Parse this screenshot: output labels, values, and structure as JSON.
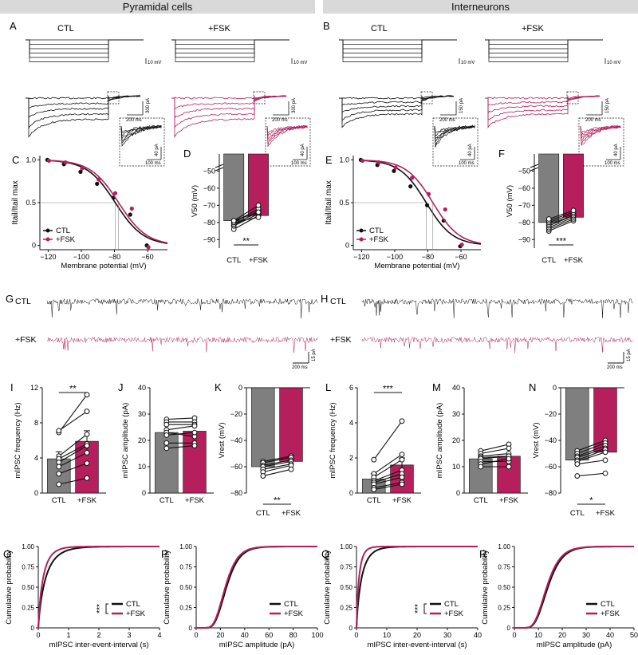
{
  "headers": [
    "Pyramidal cells",
    "Interneurons"
  ],
  "colors": {
    "ctl": "#111111",
    "fsk": "#b51f5c",
    "ctl_bar": "#7f7f7f",
    "grey_bg": "#d9d9d9"
  },
  "panel_letters": [
    "A",
    "B",
    "C",
    "D",
    "E",
    "F",
    "G",
    "H",
    "I",
    "J",
    "K",
    "L",
    "M",
    "N",
    "O",
    "P",
    "Q",
    "R"
  ],
  "conditions": {
    "ctl": "CTL",
    "fsk": "+FSK"
  },
  "scalebars": {
    "A": {
      "v": "10 mV",
      "i": "300 pA",
      "t": "200 ms",
      "ii": "40 pA",
      "tt": "100 ms"
    },
    "B": {
      "v": "10 mV",
      "i": "150 pA",
      "t": "200 ms",
      "ii": "40 pA",
      "tt": "100 ms"
    },
    "G": {
      "i": "15 pA",
      "t": "200 ms"
    },
    "H": {
      "i": "15 pA",
      "t": "200 ms"
    }
  },
  "chart_data": [
    {
      "panel": "C",
      "type": "scatter",
      "ylabel": "Itail/Itail max",
      "xlabel": "Membrane potential (mV)",
      "xlim": [
        -125,
        -48
      ],
      "ylim": [
        -0.05,
        1.05
      ],
      "xticks": [
        -120,
        -100,
        -80,
        -60
      ],
      "yticks": [
        0,
        0.5,
        1.0
      ],
      "ytick_labels": [
        "0",
        "0.5",
        "1.0"
      ],
      "legend": [
        "CTL",
        "+FSK"
      ],
      "series": [
        {
          "name": "CTL",
          "x": [
            -120,
            -110,
            -100,
            -90,
            -80,
            -70,
            -60
          ],
          "y": [
            1.0,
            0.95,
            0.86,
            0.72,
            0.56,
            0.36,
            0.0
          ],
          "v50": -79.5,
          "k": 8.5
        },
        {
          "name": "+FSK",
          "x": [
            -120,
            -110,
            -100,
            -90,
            -80,
            -70,
            -60
          ],
          "y": [
            0.99,
            0.97,
            0.9,
            0.77,
            0.61,
            0.43,
            -0.02
          ],
          "v50": -77.5,
          "k": 8.5
        }
      ]
    },
    {
      "panel": "D",
      "type": "bar",
      "ylabel": "V50 (mV)",
      "categories": [
        "CTL",
        "+FSK"
      ],
      "values": [
        -79,
        -76
      ],
      "ylim": [
        -95,
        -40
      ],
      "yticks": [
        -90,
        -80,
        -70,
        -60,
        -50
      ],
      "sig": "**",
      "pairs": [
        [
          -84,
          -76
        ],
        [
          -82,
          -75
        ],
        [
          -82,
          -73
        ],
        [
          -81,
          -74
        ],
        [
          -80,
          -72
        ],
        [
          -80,
          -77
        ],
        [
          -79,
          -70
        ],
        [
          -79,
          -74
        ]
      ]
    },
    {
      "panel": "E",
      "type": "scatter",
      "ylabel": "Itail/Itail max",
      "xlabel": "Membrane potential (mV)",
      "xlim": [
        -125,
        -48
      ],
      "ylim": [
        -0.05,
        1.05
      ],
      "xticks": [
        -120,
        -100,
        -80,
        -60
      ],
      "yticks": [
        0,
        0.5,
        1.0
      ],
      "ytick_labels": [
        "0",
        "0.5",
        "1.0"
      ],
      "legend": [
        "CTL",
        "+FSK"
      ],
      "series": [
        {
          "name": "CTL",
          "x": [
            -120,
            -110,
            -100,
            -90,
            -80,
            -70,
            -60
          ],
          "y": [
            1.0,
            0.94,
            0.87,
            0.69,
            0.47,
            0.29,
            -0.01
          ],
          "v50": -81.0,
          "k": 8.0
        },
        {
          "name": "+FSK",
          "x": [
            -120,
            -110,
            -100,
            -90,
            -80,
            -70,
            -60
          ],
          "y": [
            0.99,
            0.97,
            0.91,
            0.79,
            0.6,
            0.42,
            0.01
          ],
          "v50": -77.0,
          "k": 8.0
        }
      ]
    },
    {
      "panel": "F",
      "type": "bar",
      "ylabel": "V50 (mV)",
      "categories": [
        "CTL",
        "+FSK"
      ],
      "values": [
        -80,
        -77
      ],
      "ylim": [
        -95,
        -40
      ],
      "yticks": [
        -90,
        -80,
        -70,
        -60,
        -50
      ],
      "sig": "***",
      "pairs": [
        [
          -85,
          -79
        ],
        [
          -84,
          -78
        ],
        [
          -83,
          -77
        ],
        [
          -82,
          -76
        ],
        [
          -81,
          -76
        ],
        [
          -80,
          -75
        ],
        [
          -79,
          -74
        ],
        [
          -78,
          -73
        ]
      ]
    },
    {
      "panel": "I",
      "type": "bar",
      "ylabel": "mIPSC frequency (Hz)",
      "categories": [
        "CTL",
        "+FSK"
      ],
      "values": [
        3.9,
        5.9
      ],
      "errors": [
        0.8,
        1.2
      ],
      "ylim": [
        0,
        12
      ],
      "yticks": [
        0,
        4,
        8,
        12
      ],
      "sig": "**",
      "pairs": [
        [
          6.9,
          11.2
        ],
        [
          7.1,
          9.3
        ],
        [
          4.2,
          6.7
        ],
        [
          3.9,
          5.6
        ],
        [
          3.5,
          5.4
        ],
        [
          3.0,
          4.6
        ],
        [
          2.2,
          3.4
        ],
        [
          1.0,
          1.7
        ]
      ]
    },
    {
      "panel": "J",
      "type": "bar",
      "ylabel": "mIPSC amplitude (pA)",
      "categories": [
        "CTL",
        "+FSK"
      ],
      "values": [
        23,
        23.5
      ],
      "ylim": [
        0,
        40
      ],
      "yticks": [
        0,
        10,
        20,
        30,
        40
      ],
      "pairs": [
        [
          28,
          28.5
        ],
        [
          27,
          27
        ],
        [
          26,
          26
        ],
        [
          24,
          25.5
        ],
        [
          23,
          21.5
        ],
        [
          22,
          23
        ],
        [
          19,
          19
        ],
        [
          17,
          18
        ]
      ]
    },
    {
      "panel": "K",
      "type": "bar",
      "ylabel": "Vrest (mV)",
      "categories": [
        "CTL",
        "+FSK"
      ],
      "values": [
        -60,
        -56
      ],
      "ylim": [
        -80,
        0
      ],
      "yticks": [
        -80,
        -60,
        -40,
        -20,
        0
      ],
      "sig": "**",
      "inverted": true,
      "pairs": [
        [
          -56,
          -52
        ],
        [
          -57,
          -53
        ],
        [
          -59,
          -55
        ],
        [
          -60,
          -56
        ],
        [
          -62,
          -58
        ],
        [
          -64,
          -59
        ],
        [
          -67,
          -62
        ]
      ]
    },
    {
      "panel": "L",
      "type": "bar",
      "ylabel": "mIPSC frequency (Hz)",
      "categories": [
        "CTL",
        "+FSK"
      ],
      "values": [
        0.8,
        1.6
      ],
      "errors": [
        0.3,
        0.4
      ],
      "ylim": [
        0,
        6
      ],
      "yticks": [
        0,
        2,
        4,
        6
      ],
      "sig": "***",
      "pairs": [
        [
          1.9,
          4.1
        ],
        [
          1.1,
          2.2
        ],
        [
          0.9,
          1.9
        ],
        [
          0.7,
          1.3
        ],
        [
          0.6,
          1.1
        ],
        [
          0.5,
          0.9
        ],
        [
          0.3,
          0.6
        ],
        [
          0.2,
          0.5
        ]
      ]
    },
    {
      "panel": "M",
      "type": "bar",
      "ylabel": "mIPSC amplitude (pA)",
      "categories": [
        "CTL",
        "+FSK"
      ],
      "values": [
        13,
        14
      ],
      "ylim": [
        0,
        40
      ],
      "yticks": [
        0,
        10,
        20,
        30,
        40
      ],
      "pairs": [
        [
          16,
          18.5
        ],
        [
          15,
          17
        ],
        [
          14,
          15
        ],
        [
          13.5,
          14
        ],
        [
          13,
          14
        ],
        [
          12,
          12
        ],
        [
          11,
          13
        ],
        [
          10,
          10
        ]
      ]
    },
    {
      "panel": "N",
      "type": "bar",
      "ylabel": "Vrest (mV)",
      "categories": [
        "CTL",
        "+FSK"
      ],
      "values": [
        -55,
        -49
      ],
      "ylim": [
        -80,
        0
      ],
      "yticks": [
        -80,
        -60,
        -40,
        -20,
        0
      ],
      "sig": "*",
      "inverted": true,
      "pairs": [
        [
          -48,
          -40
        ],
        [
          -50,
          -42
        ],
        [
          -52,
          -44
        ],
        [
          -53,
          -46
        ],
        [
          -55,
          -47
        ],
        [
          -56,
          -49
        ],
        [
          -58,
          -55
        ],
        [
          -67,
          -65
        ]
      ]
    },
    {
      "panel": "O",
      "type": "line",
      "ylabel": "Cumulative probability",
      "xlabel": "mIPSC inter-event-interval (s)",
      "xlim": [
        0,
        4
      ],
      "ylim": [
        0,
        1.0
      ],
      "xticks": [
        0,
        1,
        2,
        3,
        4
      ],
      "yticks": [
        0,
        0.25,
        0.5,
        0.75,
        1.0
      ],
      "ytick_labels": [
        "0",
        "0.25",
        "0.50",
        "0.75",
        "1.00"
      ],
      "sig": "***",
      "series": [
        {
          "name": "CTL",
          "scale": 0.26
        },
        {
          "name": "+FSK",
          "scale": 0.17
        }
      ]
    },
    {
      "panel": "P",
      "type": "line",
      "ylabel": "Cumulative probability",
      "xlabel": "mIPSC amplitude (pA)",
      "xlim": [
        0,
        100
      ],
      "ylim": [
        0,
        1.0
      ],
      "xticks": [
        0,
        20,
        40,
        60,
        80,
        100
      ],
      "yticks": [
        0,
        0.25,
        0.5,
        0.75,
        1.0
      ],
      "ytick_labels": [
        "0",
        "0.25",
        "0.50",
        "0.75",
        "1.00"
      ],
      "series": [
        {
          "name": "CTL",
          "mu": 25,
          "sd": 8
        },
        {
          "name": "+FSK",
          "mu": 24,
          "sd": 8
        }
      ]
    },
    {
      "panel": "Q",
      "type": "line",
      "ylabel": "Cumulative probability",
      "xlabel": "mIPSC inter-event-interval (s)",
      "xlim": [
        0,
        40
      ],
      "ylim": [
        0,
        1.0
      ],
      "xticks": [
        0,
        10,
        20,
        30,
        40
      ],
      "yticks": [
        0,
        0.25,
        0.5,
        0.75,
        1.0
      ],
      "ytick_labels": [
        "0",
        "0.25",
        "0.50",
        "0.75",
        "1.00"
      ],
      "sig": "***",
      "series": [
        {
          "name": "CTL",
          "scale": 1.8
        },
        {
          "name": "+FSK",
          "scale": 0.9
        }
      ]
    },
    {
      "panel": "R",
      "type": "line",
      "ylabel": "Cumulative probability",
      "xlabel": "mIPSC amplitude (pA)",
      "xlim": [
        0,
        50
      ],
      "ylim": [
        0,
        1.0
      ],
      "xticks": [
        0,
        10,
        20,
        30,
        40,
        50
      ],
      "yticks": [
        0,
        0.25,
        0.5,
        0.75,
        1.0
      ],
      "ytick_labels": [
        "0",
        "0.25",
        "0.50",
        "0.75",
        "1.00"
      ],
      "series": [
        {
          "name": "CTL",
          "mu": 14,
          "sd": 4
        },
        {
          "name": "+FSK",
          "mu": 13.5,
          "sd": 4
        }
      ]
    }
  ]
}
